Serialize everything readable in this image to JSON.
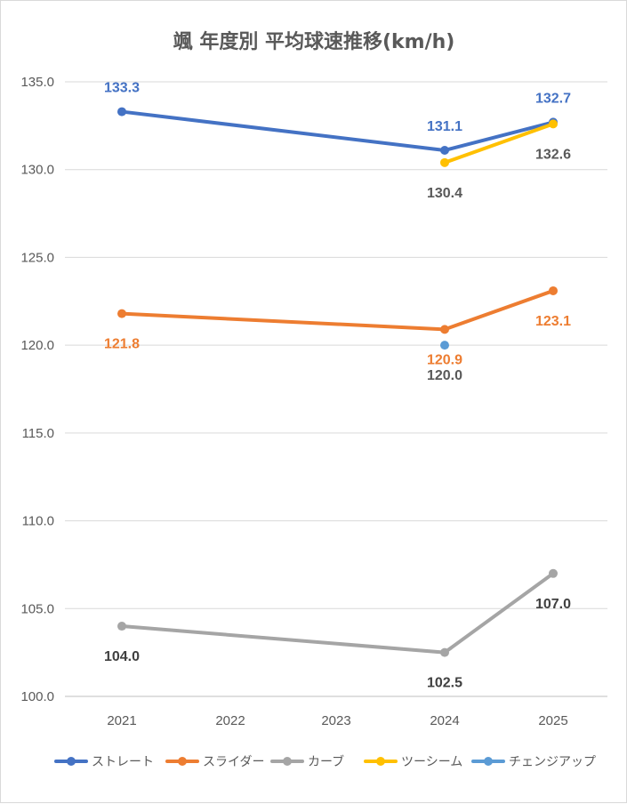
{
  "chart_data": {
    "type": "line",
    "title": "颯 年度別 平均球速推移(km/h)",
    "xlabel": "",
    "ylabel": "",
    "categories": [
      "2021",
      "2022",
      "2023",
      "2024",
      "2025"
    ],
    "x_values": [
      2021,
      2022,
      2023,
      2024,
      2025
    ],
    "ylim": [
      100,
      135
    ],
    "yticks": [
      "100.0",
      "105.0",
      "110.0",
      "115.0",
      "120.0",
      "125.0",
      "130.0",
      "135.0"
    ],
    "ytick_values": [
      100,
      105,
      110,
      115,
      120,
      125,
      130,
      135
    ],
    "grid": true,
    "legend_position": "bottom",
    "series": [
      {
        "name": "ストレート",
        "color": "#4472C4",
        "points": [
          {
            "x": 2021,
            "y": 133.3,
            "label": "133.3",
            "label_pos": "above"
          },
          {
            "x": 2024,
            "y": 131.1,
            "label": "131.1",
            "label_pos": "above"
          },
          {
            "x": 2025,
            "y": 132.7,
            "label": "132.7",
            "label_pos": "above"
          }
        ]
      },
      {
        "name": "スライダー",
        "color": "#ED7D31",
        "points": [
          {
            "x": 2021,
            "y": 121.8,
            "label": "121.8",
            "label_pos": "below"
          },
          {
            "x": 2024,
            "y": 120.9,
            "label": "120.9",
            "label_pos": "below"
          },
          {
            "x": 2025,
            "y": 123.1,
            "label": "123.1",
            "label_pos": "below"
          }
        ]
      },
      {
        "name": "カーブ",
        "color": "#A5A5A5",
        "points": [
          {
            "x": 2021,
            "y": 104.0,
            "label": "104.0",
            "label_pos": "below"
          },
          {
            "x": 2024,
            "y": 102.5,
            "label": "102.5",
            "label_pos": "below"
          },
          {
            "x": 2025,
            "y": 107.0,
            "label": "107.0",
            "label_pos": "below"
          }
        ]
      },
      {
        "name": "ツーシーム",
        "color": "#FFC000",
        "points": [
          {
            "x": 2024,
            "y": 130.4,
            "label": "130.4",
            "label_pos": "below"
          },
          {
            "x": 2025,
            "y": 132.6,
            "label": "132.6",
            "label_pos": "below"
          }
        ]
      },
      {
        "name": "チェンジアップ",
        "color": "#5B9BD5",
        "points": [
          {
            "x": 2024,
            "y": 120.0,
            "label": "120.0",
            "label_pos": "below"
          }
        ]
      }
    ],
    "data_label_colors": {
      "ストレート": "#4472C4",
      "スライダー": "#ED7D31",
      "カーブ": "#404040",
      "ツーシーム": "#595959",
      "チェンジアップ": "#595959"
    }
  }
}
